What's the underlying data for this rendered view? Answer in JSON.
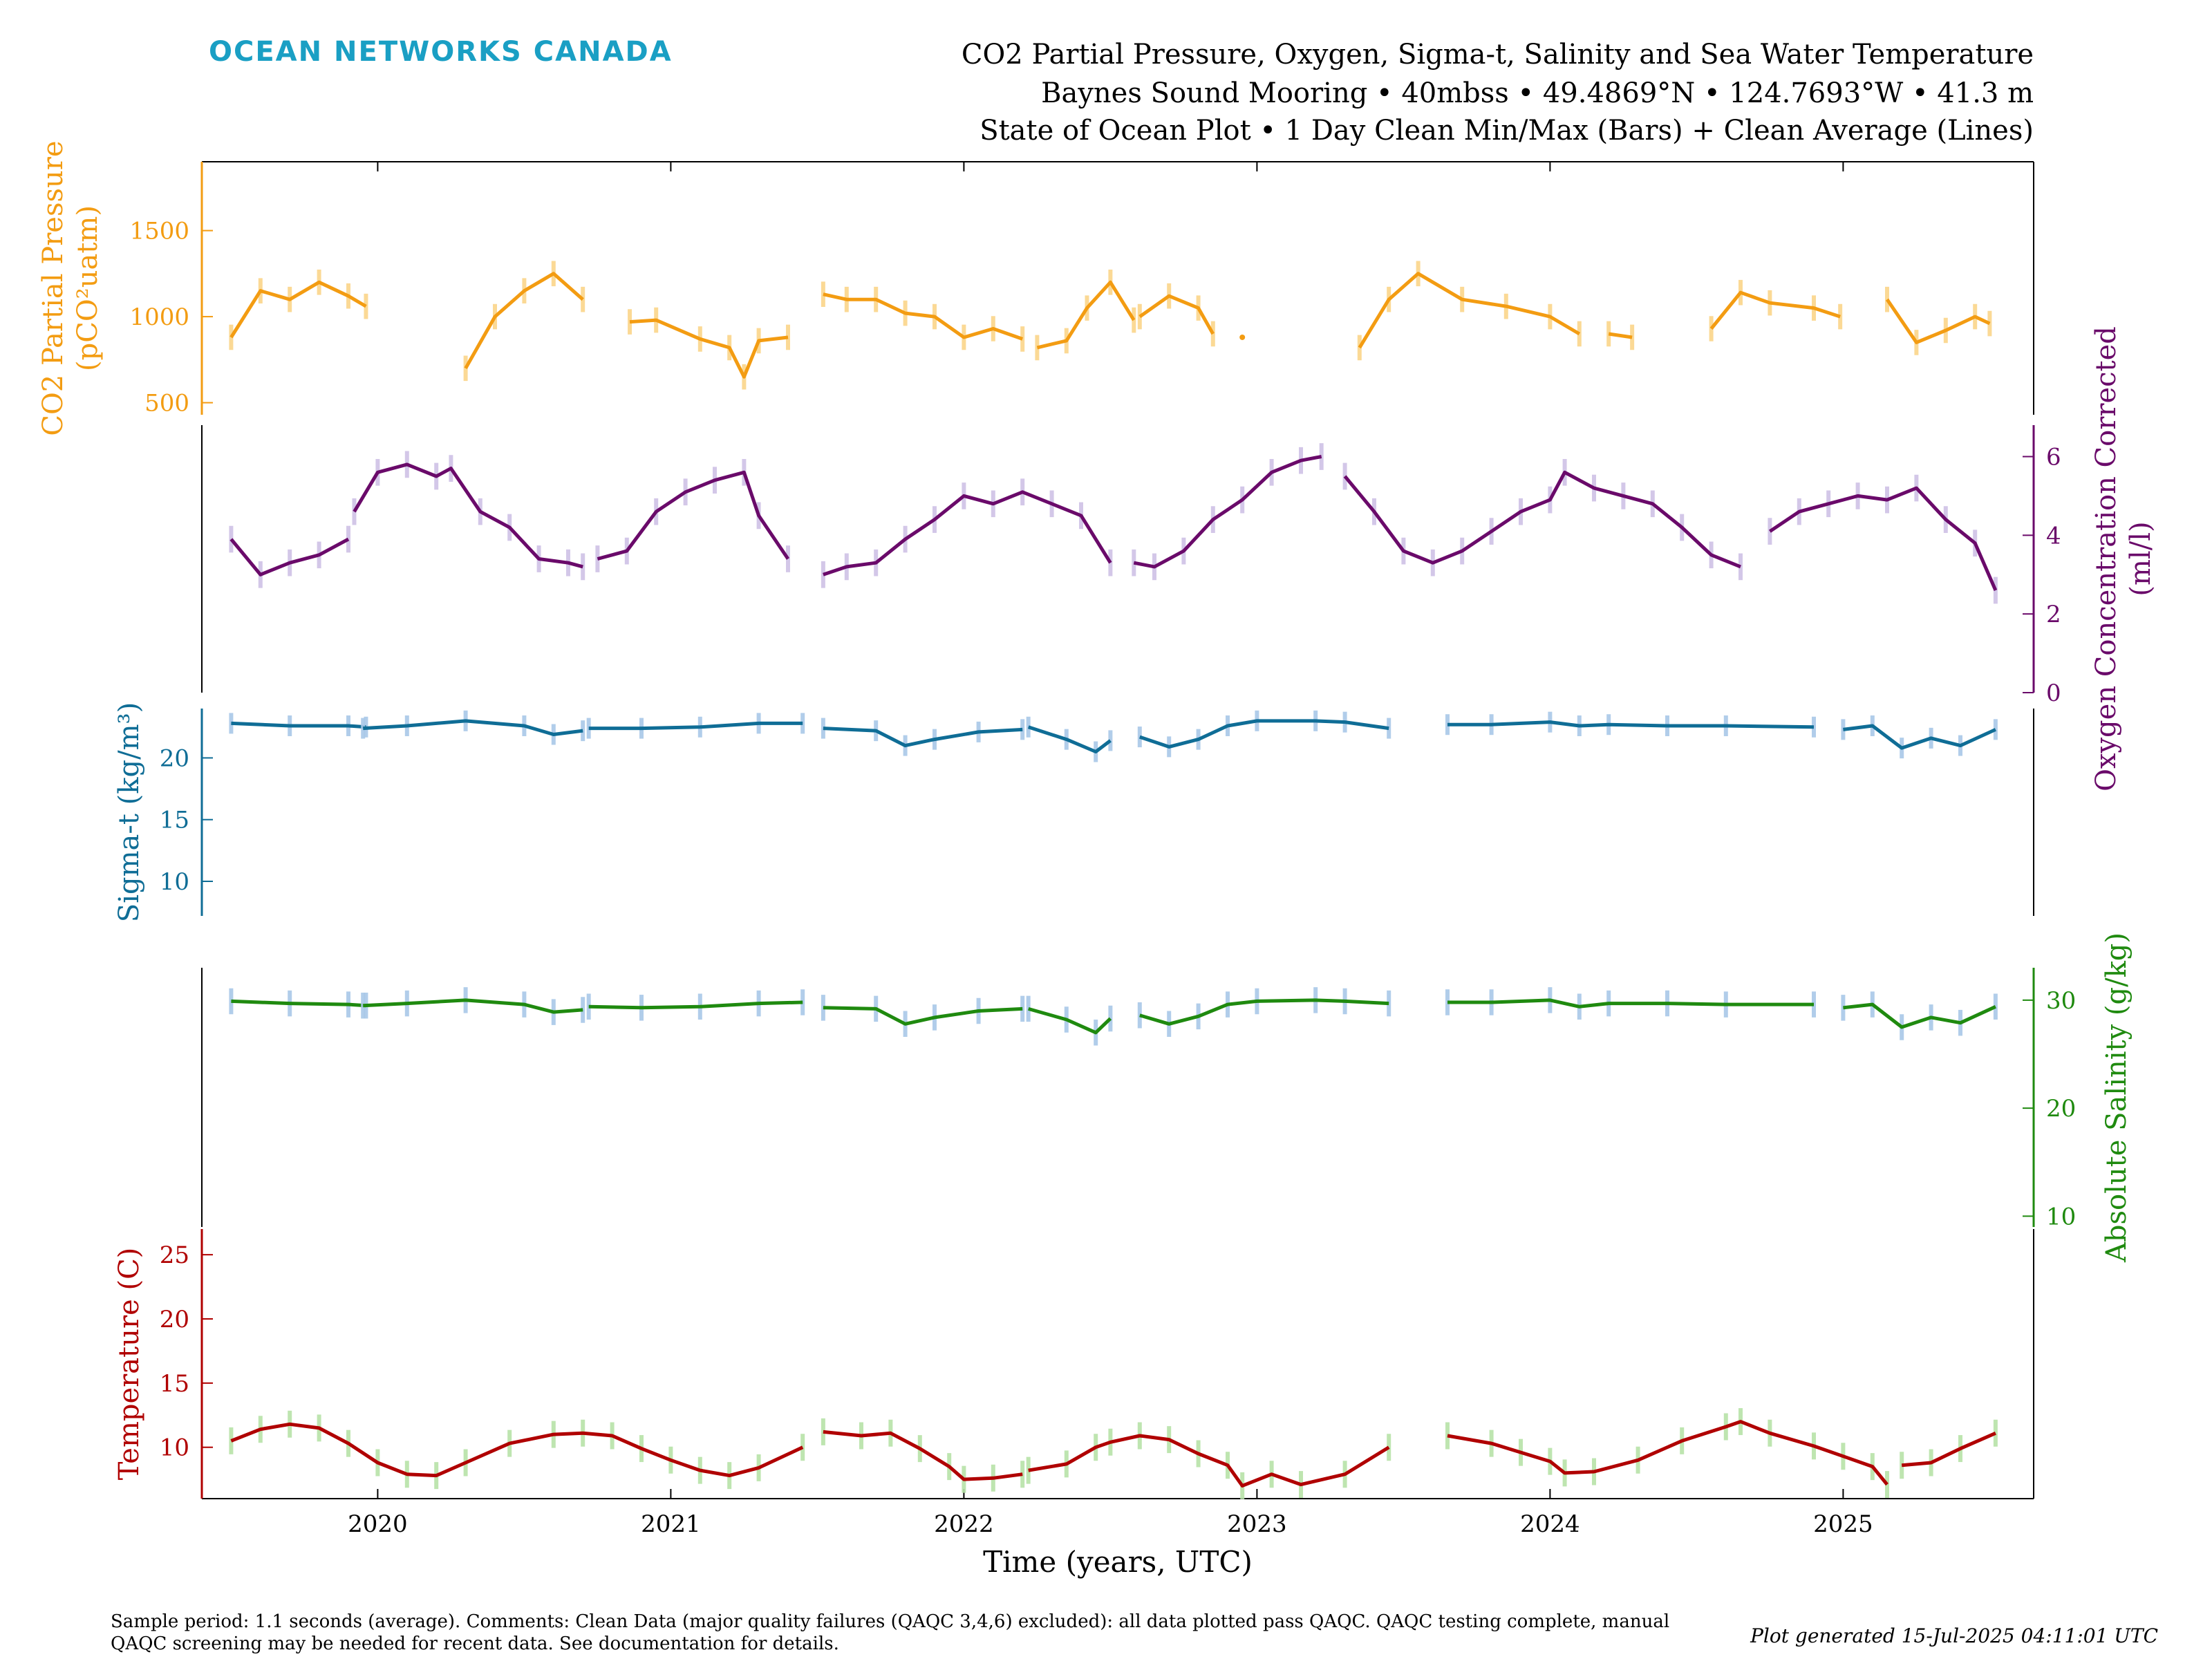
{
  "header": {
    "brand": "OCEAN NETWORKS CANADA",
    "title_line1": "CO2 Partial Pressure, Oxygen, Sigma-t, Salinity and Sea Water Temperature",
    "title_line2": "Baynes Sound Mooring • 40mbss • 49.4869°N • 124.7693°W • 41.3 m",
    "title_line3": "State of Ocean Plot • 1 Day Clean Min/Max (Bars) + Clean Average (Lines)"
  },
  "footer": {
    "note": "Sample period: 1.1 seconds (average). Comments: Clean Data (major quality failures (QAQC 3,4,6) excluded): all data plotted pass QAQC. QAQC testing complete, manual QAQC screening may be needed for recent data. See documentation for details.",
    "generated": "Plot generated 15-Jul-2025 04:11:01 UTC"
  },
  "chart_data": {
    "type": "line",
    "xlabel": "Time (years, UTC)",
    "xlim": [
      2019.4,
      2025.65
    ],
    "xticks": [
      "2020",
      "2021",
      "2022",
      "2023",
      "2024",
      "2025"
    ],
    "colors": {
      "co2": "#f39c12",
      "co2_bars": "#fbd58a",
      "oxygen": "#6a0a6a",
      "oxygen_bars": "#cfc2e6",
      "sigma": "#0f6d96",
      "sigma_bars": "#a9c8e8",
      "salinity": "#1f8a0f",
      "salinity_bars": "#a9c8e8",
      "temperature": "#b00000",
      "temperature_bars": "#b7e3a8"
    },
    "panels": [
      {
        "id": "co2",
        "ylabel": "CO2 Partial Pressure (pCO2 uatm)",
        "ylabel_line1": "CO2 Partial Pressure",
        "ylabel_line2": "(pCO²uatm)",
        "axis_side": "left",
        "ylim": [
          430,
          1900
        ],
        "yticks": [
          "500",
          "1000",
          "1500"
        ],
        "segments": [
          {
            "x": [
              2019.5,
              2019.6,
              2019.7,
              2019.8,
              2019.9,
              2019.96
            ],
            "y": [
              880,
              1150,
              1100,
              1200,
              1120,
              1060
            ]
          },
          {
            "x": [
              2020.3,
              2020.4,
              2020.5,
              2020.6,
              2020.7
            ],
            "y": [
              700,
              1000,
              1150,
              1250,
              1100
            ]
          },
          {
            "x": [
              2020.86,
              2020.95,
              2021.1,
              2021.2,
              2021.25,
              2021.3,
              2021.4
            ],
            "y": [
              970,
              980,
              870,
              820,
              650,
              860,
              880
            ]
          },
          {
            "x": [
              2021.52,
              2021.6,
              2021.7,
              2021.8,
              2021.9,
              2022.0,
              2022.1,
              2022.2
            ],
            "y": [
              1130,
              1100,
              1100,
              1020,
              1000,
              880,
              930,
              870
            ]
          },
          {
            "x": [
              2022.25,
              2022.35,
              2022.42,
              2022.5,
              2022.58
            ],
            "y": [
              820,
              860,
              1050,
              1200,
              980
            ]
          },
          {
            "x": [
              2022.6,
              2022.7,
              2022.8,
              2022.85
            ],
            "y": [
              1000,
              1120,
              1050,
              900
            ]
          },
          {
            "x": [
              2022.95
            ],
            "y": [
              880
            ]
          },
          {
            "x": [
              2023.35,
              2023.45,
              2023.55,
              2023.7,
              2023.85,
              2024.0,
              2024.1
            ],
            "y": [
              820,
              1100,
              1250,
              1100,
              1060,
              1000,
              900
            ]
          },
          {
            "x": [
              2024.2,
              2024.28
            ],
            "y": [
              900,
              880
            ]
          },
          {
            "x": [
              2024.55,
              2024.65,
              2024.75,
              2024.9,
              2024.99
            ],
            "y": [
              930,
              1140,
              1080,
              1050,
              1000
            ]
          },
          {
            "x": [
              2025.15,
              2025.25,
              2025.35,
              2025.45,
              2025.5
            ],
            "y": [
              1100,
              850,
              920,
              1000,
              960
            ]
          }
        ]
      },
      {
        "id": "oxygen",
        "ylabel": "Oxygen Concentration Corrected (ml/l)",
        "ylabel_line1": "Oxygen Concentration Corrected",
        "ylabel_line2": "(ml/l)",
        "axis_side": "right",
        "ylim": [
          0,
          6.8
        ],
        "yticks": [
          "0",
          "2",
          "4",
          "6"
        ],
        "segments": [
          {
            "x": [
              2019.5,
              2019.6,
              2019.7,
              2019.8,
              2019.9
            ],
            "y": [
              3.9,
              3.0,
              3.3,
              3.5,
              3.9
            ]
          },
          {
            "x": [
              2019.92,
              2020.0,
              2020.1,
              2020.2,
              2020.25,
              2020.35,
              2020.45,
              2020.55,
              2020.65,
              2020.7
            ],
            "y": [
              4.6,
              5.6,
              5.8,
              5.5,
              5.7,
              4.6,
              4.2,
              3.4,
              3.3,
              3.2
            ]
          },
          {
            "x": [
              2020.75,
              2020.85,
              2020.95,
              2021.05,
              2021.15,
              2021.25,
              2021.3,
              2021.4
            ],
            "y": [
              3.4,
              3.6,
              4.6,
              5.1,
              5.4,
              5.6,
              4.5,
              3.4
            ]
          },
          {
            "x": [
              2021.52,
              2021.6,
              2021.7,
              2021.8,
              2021.9,
              2022.0,
              2022.1,
              2022.2,
              2022.3,
              2022.4,
              2022.5
            ],
            "y": [
              3.0,
              3.2,
              3.3,
              3.9,
              4.4,
              5.0,
              4.8,
              5.1,
              4.8,
              4.5,
              3.3
            ]
          },
          {
            "x": [
              2022.58,
              2022.65,
              2022.75,
              2022.85,
              2022.95,
              2023.05,
              2023.15,
              2023.22
            ],
            "y": [
              3.3,
              3.2,
              3.6,
              4.4,
              4.9,
              5.6,
              5.9,
              6.0
            ]
          },
          {
            "x": [
              2023.3,
              2023.4,
              2023.5,
              2023.6,
              2023.7,
              2023.8,
              2023.9,
              2024.0,
              2024.05,
              2024.15,
              2024.25,
              2024.35,
              2024.45,
              2024.55,
              2024.65
            ],
            "y": [
              5.5,
              4.6,
              3.6,
              3.3,
              3.6,
              4.1,
              4.6,
              4.9,
              5.6,
              5.2,
              5.0,
              4.8,
              4.2,
              3.5,
              3.2
            ]
          },
          {
            "x": [
              2024.75,
              2024.85,
              2024.95,
              2025.05,
              2025.15,
              2025.25,
              2025.35,
              2025.45,
              2025.52
            ],
            "y": [
              4.1,
              4.6,
              4.8,
              5.0,
              4.9,
              5.2,
              4.4,
              3.8,
              2.6
            ]
          }
        ]
      },
      {
        "id": "sigma",
        "ylabel": "Sigma-t (kg/m3)",
        "ylabel_line1": "Sigma-t (kg/m³)",
        "axis_side": "left",
        "ylim": [
          7.2,
          24
        ],
        "yticks": [
          "10",
          "15",
          "20"
        ],
        "segments": [
          {
            "x": [
              2019.5,
              2019.7,
              2019.9,
              2019.96
            ],
            "y": [
              22.8,
              22.6,
              22.6,
              22.5
            ]
          },
          {
            "x": [
              2019.95,
              2020.1,
              2020.3,
              2020.5,
              2020.6,
              2020.7
            ],
            "y": [
              22.4,
              22.6,
              23.0,
              22.6,
              21.9,
              22.2
            ]
          },
          {
            "x": [
              2020.72,
              2020.9,
              2021.1,
              2021.3,
              2021.45
            ],
            "y": [
              22.4,
              22.4,
              22.5,
              22.8,
              22.8
            ]
          },
          {
            "x": [
              2021.52,
              2021.7,
              2021.8,
              2021.9,
              2022.05,
              2022.2
            ],
            "y": [
              22.4,
              22.2,
              21.0,
              21.5,
              22.1,
              22.3
            ]
          },
          {
            "x": [
              2022.22,
              2022.35,
              2022.45,
              2022.5
            ],
            "y": [
              22.5,
              21.5,
              20.5,
              21.4
            ]
          },
          {
            "x": [
              2022.6,
              2022.7,
              2022.8,
              2022.9,
              2023.0,
              2023.2,
              2023.3,
              2023.45
            ],
            "y": [
              21.7,
              20.9,
              21.5,
              22.6,
              23.0,
              23.0,
              22.9,
              22.4
            ]
          },
          {
            "x": [
              2023.65,
              2023.8,
              2024.0,
              2024.1,
              2024.2,
              2024.4,
              2024.6,
              2024.9
            ],
            "y": [
              22.7,
              22.7,
              22.9,
              22.6,
              22.7,
              22.6,
              22.6,
              22.5
            ]
          },
          {
            "x": [
              2025.0,
              2025.1,
              2025.2,
              2025.3,
              2025.4,
              2025.52
            ],
            "y": [
              22.3,
              22.6,
              20.8,
              21.6,
              21.0,
              22.3
            ]
          }
        ]
      },
      {
        "id": "salinity",
        "ylabel": "Absolute Salinity (g/kg)",
        "ylabel_line1": "Absolute Salinity (g/kg)",
        "axis_side": "right",
        "ylim": [
          9,
          33
        ],
        "yticks": [
          "10",
          "20",
          "30"
        ],
        "segments": [
          {
            "x": [
              2019.5,
              2019.7,
              2019.9,
              2019.96
            ],
            "y": [
              29.9,
              29.7,
              29.6,
              29.5
            ]
          },
          {
            "x": [
              2019.95,
              2020.1,
              2020.3,
              2020.5,
              2020.6,
              2020.7
            ],
            "y": [
              29.5,
              29.7,
              30.0,
              29.6,
              28.9,
              29.1
            ]
          },
          {
            "x": [
              2020.72,
              2020.9,
              2021.1,
              2021.3,
              2021.45
            ],
            "y": [
              29.4,
              29.3,
              29.4,
              29.7,
              29.8
            ]
          },
          {
            "x": [
              2021.52,
              2021.7,
              2021.8,
              2021.9,
              2022.05,
              2022.2
            ],
            "y": [
              29.3,
              29.2,
              27.8,
              28.4,
              29.0,
              29.2
            ]
          },
          {
            "x": [
              2022.22,
              2022.35,
              2022.45,
              2022.5
            ],
            "y": [
              29.2,
              28.2,
              27.0,
              28.3
            ]
          },
          {
            "x": [
              2022.6,
              2022.7,
              2022.8,
              2022.9,
              2023.0,
              2023.2,
              2023.3,
              2023.45
            ],
            "y": [
              28.6,
              27.8,
              28.5,
              29.6,
              29.9,
              30.0,
              29.9,
              29.7
            ]
          },
          {
            "x": [
              2023.65,
              2023.8,
              2024.0,
              2024.1,
              2024.2,
              2024.4,
              2024.6,
              2024.9
            ],
            "y": [
              29.8,
              29.8,
              30.0,
              29.4,
              29.7,
              29.7,
              29.6,
              29.6
            ]
          },
          {
            "x": [
              2025.0,
              2025.1,
              2025.2,
              2025.3,
              2025.4,
              2025.52
            ],
            "y": [
              29.3,
              29.6,
              27.5,
              28.4,
              27.9,
              29.4
            ]
          }
        ]
      },
      {
        "id": "temperature",
        "ylabel": "Temperature (C)",
        "ylabel_line1": "Temperature (C)",
        "axis_side": "left",
        "ylim": [
          6,
          27
        ],
        "yticks": [
          "10",
          "15",
          "20",
          "25"
        ],
        "segments": [
          {
            "x": [
              2019.5,
              2019.6,
              2019.7,
              2019.8,
              2019.9,
              2020.0,
              2020.1,
              2020.2,
              2020.3,
              2020.45,
              2020.6,
              2020.7,
              2020.8,
              2020.9,
              2021.0,
              2021.1,
              2021.2,
              2021.3,
              2021.45
            ],
            "y": [
              10.5,
              11.4,
              11.8,
              11.5,
              10.3,
              8.8,
              7.9,
              7.8,
              8.8,
              10.3,
              11.0,
              11.1,
              10.9,
              9.9,
              9.0,
              8.2,
              7.8,
              8.4,
              10.0
            ]
          },
          {
            "x": [
              2021.52,
              2021.65,
              2021.75,
              2021.85,
              2021.95,
              2022.0,
              2022.1,
              2022.2
            ],
            "y": [
              11.2,
              10.9,
              11.1,
              9.9,
              8.5,
              7.5,
              7.6,
              7.9
            ]
          },
          {
            "x": [
              2022.22,
              2022.35,
              2022.45,
              2022.5,
              2022.6,
              2022.7,
              2022.8,
              2022.9,
              2022.95,
              2023.05,
              2023.15,
              2023.3,
              2023.45
            ],
            "y": [
              8.2,
              8.7,
              10.0,
              10.4,
              10.9,
              10.6,
              9.5,
              8.6,
              7.0,
              7.9,
              7.1,
              7.9,
              10.0
            ]
          },
          {
            "x": [
              2023.65,
              2023.8,
              2023.9,
              2024.0,
              2024.05,
              2024.15,
              2024.3,
              2024.45,
              2024.6,
              2024.65,
              2024.75,
              2024.9,
              2025.0,
              2025.1,
              2025.15
            ],
            "y": [
              10.9,
              10.3,
              9.6,
              8.9,
              8.0,
              8.1,
              9.0,
              10.5,
              11.6,
              12.0,
              11.1,
              10.1,
              9.3,
              8.5,
              7.1
            ]
          },
          {
            "x": [
              2025.2,
              2025.3,
              2025.4,
              2025.52
            ],
            "y": [
              8.6,
              8.8,
              9.9,
              11.1
            ]
          }
        ]
      }
    ]
  }
}
